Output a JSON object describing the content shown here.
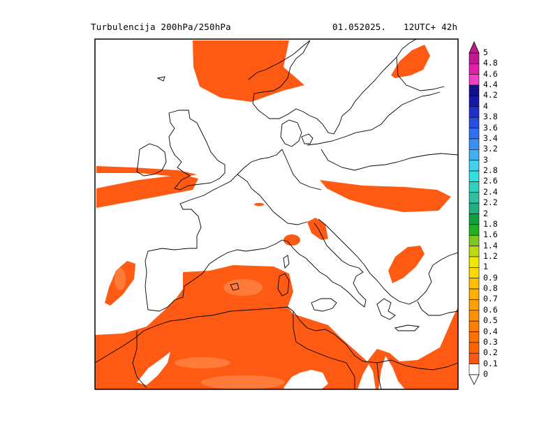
{
  "header": {
    "title": "Turbulencija 200hPa/250hPa",
    "date": "01.052025.",
    "run": "12UTC+ 42h"
  },
  "colors": {
    "turbulence_fill": "#ff5a14",
    "turbulence_core": "#ff7b3a",
    "coastline": "#000000",
    "frame": "#000000"
  },
  "colorbar": {
    "labels": [
      "5",
      "4.8",
      "4.6",
      "4.4",
      "4.2",
      "4",
      "3.8",
      "3.6",
      "3.4",
      "3.2",
      "3",
      "2.8",
      "2.6",
      "2.4",
      "2.2",
      "2",
      "1.8",
      "1.6",
      "1.4",
      "1.2",
      "1",
      "0.9",
      "0.8",
      "0.7",
      "0.6",
      "0.5",
      "0.4",
      "0.3",
      "0.2",
      "0.1",
      "0"
    ],
    "colors": [
      "#c01890",
      "#e020a8",
      "#f040c8",
      "#10108a",
      "#1818a8",
      "#2030c8",
      "#2850e0",
      "#3070f0",
      "#3a90f0",
      "#40b0f0",
      "#40d0f0",
      "#30e0e0",
      "#30d0c0",
      "#30c0a0",
      "#20b080",
      "#10a040",
      "#20b020",
      "#80c820",
      "#c0d810",
      "#f0e800",
      "#ffd800",
      "#ffc000",
      "#ffb000",
      "#ffa000",
      "#ff9000",
      "#ff8000",
      "#ff7000",
      "#ff6400",
      "#ff5a14",
      "#ffffff"
    ]
  }
}
